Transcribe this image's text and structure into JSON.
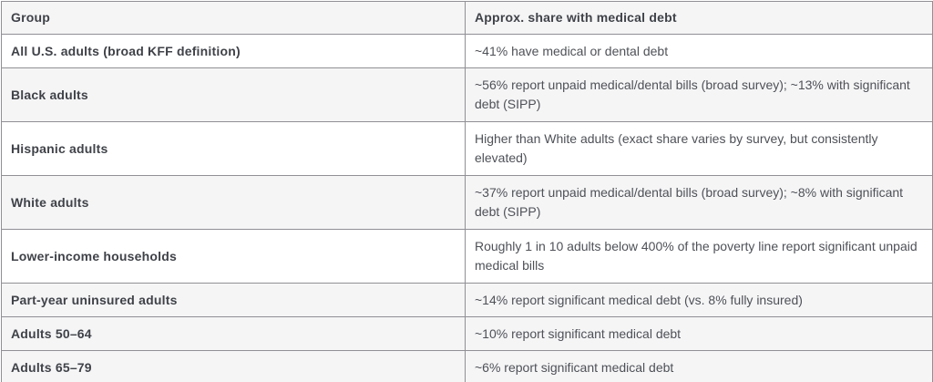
{
  "table": {
    "columns": {
      "group": "Group",
      "share": "Approx. share with medical debt"
    },
    "rows": [
      {
        "group": "All U.S. adults (broad KFF definition)",
        "share": "~41% have medical or dental debt",
        "shaded": false,
        "lines": 1
      },
      {
        "group": "Black adults",
        "share": "~56% report unpaid medical/dental bills (broad survey); ~13% with significant debt (SIPP)",
        "shaded": true,
        "lines": 2
      },
      {
        "group": "Hispanic adults",
        "share": "Higher than White adults (exact share varies by survey, but consistently elevated)",
        "shaded": false,
        "lines": 2
      },
      {
        "group": "White adults",
        "share": "~37% report unpaid medical/dental bills (broad survey); ~8% with significant debt (SIPP)",
        "shaded": true,
        "lines": 2
      },
      {
        "group": "Lower-income households",
        "share": "Roughly 1 in 10 adults below 400% of the poverty line report significant unpaid medical bills",
        "shaded": false,
        "lines": 2
      },
      {
        "group": "Part-year uninsured adults",
        "share": "~14% report significant medical debt (vs. 8% fully insured)",
        "shaded": true,
        "lines": 1
      },
      {
        "group": "Adults 50–64",
        "share": "~10% report significant medical debt",
        "shaded": true,
        "lines": 1
      },
      {
        "group": "Adults 65–79",
        "share": "~6% report significant medical debt",
        "shaded": true,
        "lines": 1
      }
    ]
  },
  "colors": {
    "header_bg": "#f5f5f6",
    "shaded_row_bg": "#f5f5f6",
    "white_row_bg": "#ffffff",
    "border": "#909095",
    "heading_text": "#3f4248",
    "body_text": "#4e5157"
  }
}
